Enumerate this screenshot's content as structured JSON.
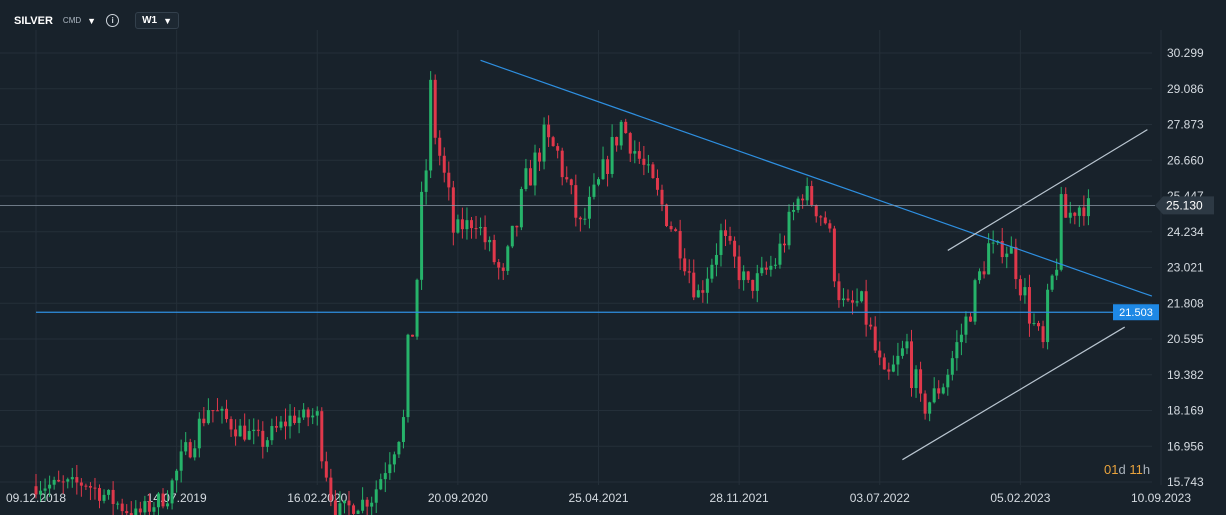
{
  "header": {
    "symbol": "SILVER",
    "instrument_type": "CMD",
    "timeframe": "W1"
  },
  "countdown": {
    "days": "01",
    "days_unit": "d",
    "hours": "11",
    "hours_unit": "h"
  },
  "colors": {
    "background": "#18222b",
    "grid": "#242f39",
    "up_candle": "#26b36a",
    "down_candle": "#e0384b",
    "trendline": "#2e8fe0",
    "channel": "#b9c5d0",
    "price_tag": "#2d3944",
    "level_tag": "#1e88e5"
  },
  "chart_data": {
    "type": "candlestick",
    "symbol": "SILVER",
    "timeframe": "W1",
    "y_ticks": [
      "30.299",
      "29.086",
      "27.873",
      "26.660",
      "25.447",
      "24.234",
      "23.021",
      "21.808",
      "20.595",
      "19.382",
      "18.169",
      "16.956",
      "15.743"
    ],
    "ylim": [
      15.743,
      30.299
    ],
    "x_ticks": [
      "09.12.2018",
      "14.07.2019",
      "16.02.2020",
      "20.09.2020",
      "25.04.2021",
      "28.11.2021",
      "03.07.2022",
      "05.02.2023",
      "10.09.2023"
    ],
    "xlim": [
      "2018-12-09",
      "2023-09-10"
    ],
    "current_price": "25.130",
    "horizontal_level": "21.503",
    "anchors": [
      [
        "2018-12-09",
        15.6
      ],
      [
        "2019-02-24",
        15.7
      ],
      [
        "2019-05-12",
        14.6
      ],
      [
        "2019-06-30",
        15.3
      ],
      [
        "2019-07-21",
        16.4
      ],
      [
        "2019-09-01",
        18.3
      ],
      [
        "2019-10-13",
        17.6
      ],
      [
        "2019-11-24",
        17.1
      ],
      [
        "2020-01-05",
        17.9
      ],
      [
        "2020-02-16",
        18.0
      ],
      [
        "2020-03-15",
        14.7
      ],
      [
        "2020-05-10",
        15.2
      ],
      [
        "2020-06-28",
        17.8
      ],
      [
        "2020-07-26",
        24.5
      ],
      [
        "2020-08-09",
        28.5
      ],
      [
        "2020-09-13",
        24.3
      ],
      [
        "2020-10-18",
        24.6
      ],
      [
        "2020-11-29",
        22.6
      ],
      [
        "2021-01-03",
        25.8
      ],
      [
        "2021-01-31",
        27.4
      ],
      [
        "2021-02-21",
        26.9
      ],
      [
        "2021-03-28",
        24.3
      ],
      [
        "2021-04-25",
        25.8
      ],
      [
        "2021-05-30",
        27.9
      ],
      [
        "2021-07-11",
        26.1
      ],
      [
        "2021-08-29",
        23.8
      ],
      [
        "2021-09-26",
        22.1
      ],
      [
        "2021-10-31",
        24.1
      ],
      [
        "2021-12-12",
        22.3
      ],
      [
        "2022-01-23",
        23.2
      ],
      [
        "2022-03-06",
        25.7
      ],
      [
        "2022-04-10",
        24.6
      ],
      [
        "2022-05-08",
        21.6
      ],
      [
        "2022-06-05",
        21.9
      ],
      [
        "2022-07-10",
        19.0
      ],
      [
        "2022-08-14",
        20.4
      ],
      [
        "2022-09-04",
        18.1
      ],
      [
        "2022-10-09",
        19.1
      ],
      [
        "2022-11-13",
        21.2
      ],
      [
        "2022-12-18",
        23.7
      ],
      [
        "2023-01-22",
        23.6
      ],
      [
        "2023-02-26",
        21.0
      ],
      [
        "2023-03-12",
        20.3
      ],
      [
        "2023-04-09",
        24.6
      ],
      [
        "2023-05-07",
        25.1
      ]
    ],
    "trendlines": [
      {
        "name": "descending-resistance",
        "from": [
          "2020-10-25",
          30.05
        ],
        "to": [
          "2023-08-27",
          22.05
        ]
      },
      {
        "name": "horizontal-support",
        "from": [
          "2018-12-09",
          21.503
        ],
        "to": [
          "2023-07-23",
          21.503
        ]
      },
      {
        "name": "channel-upper",
        "from": [
          "2022-10-16",
          23.6
        ],
        "to": [
          "2023-08-20",
          27.7
        ]
      },
      {
        "name": "channel-lower",
        "from": [
          "2022-08-07",
          16.5
        ],
        "to": [
          "2023-07-16",
          21.0
        ]
      }
    ]
  }
}
